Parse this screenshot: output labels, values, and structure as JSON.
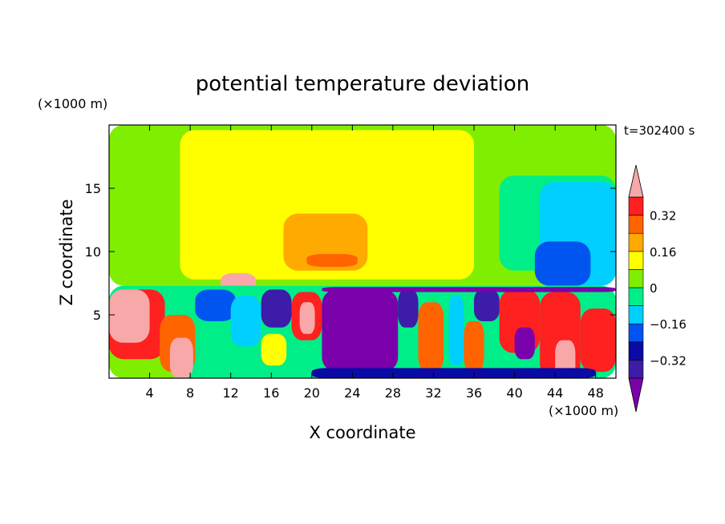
{
  "chart_data": {
    "type": "heatmap",
    "title": "potential temperature deviation",
    "xlabel": "X coordinate",
    "ylabel": "Z coordinate",
    "x_unit": "(×1000 m)",
    "y_unit": "(×1000 m)",
    "time_label": "t=302400 s",
    "xlim": [
      0,
      50
    ],
    "ylim": [
      0,
      20
    ],
    "x_ticks": [
      4,
      8,
      12,
      16,
      20,
      24,
      28,
      32,
      36,
      40,
      44,
      48
    ],
    "y_ticks": [
      5,
      10,
      15
    ],
    "colorbar": {
      "levels": [
        -0.48,
        -0.4,
        -0.32,
        -0.24,
        -0.16,
        -0.08,
        0,
        0.08,
        0.16,
        0.24,
        0.32,
        0.4
      ],
      "colors": [
        "#7a00aa",
        "#3c1ca8",
        "#0a0aa5",
        "#0055f0",
        "#00cfff",
        "#00ee88",
        "#80ee00",
        "#ffff00",
        "#ffaa00",
        "#ff6400",
        "#ff2020",
        "#f8a8a8"
      ],
      "tick_labels": [
        "0.32",
        "0.16",
        "0",
        "−0.16",
        "−0.32"
      ],
      "tick_values": [
        0.32,
        0.16,
        0,
        -0.16,
        -0.32
      ],
      "extend": "both"
    },
    "regions": [
      {
        "level": 6,
        "x": [
          0,
          50
        ],
        "z": [
          7.3,
          20
        ]
      },
      {
        "level": 7,
        "x": [
          7,
          36
        ],
        "z": [
          7.8,
          19.6
        ]
      },
      {
        "level": 5,
        "x": [
          38.5,
          50
        ],
        "z": [
          8.5,
          16
        ]
      },
      {
        "level": 4,
        "x": [
          42.5,
          50
        ],
        "z": [
          7.3,
          15.5
        ]
      },
      {
        "level": 3,
        "x": [
          42,
          47.5
        ],
        "z": [
          7.3,
          10.8
        ]
      },
      {
        "level": 8,
        "x": [
          17.2,
          25.5
        ],
        "z": [
          8.5,
          13
        ]
      },
      {
        "level": 9,
        "x": [
          19.5,
          24.5
        ],
        "z": [
          8.8,
          9.8
        ]
      },
      {
        "level": 11,
        "x": [
          11,
          14.5
        ],
        "z": [
          6.5,
          8.3
        ]
      },
      {
        "level": 5,
        "x": [
          0,
          50
        ],
        "z": [
          0,
          7.3
        ]
      },
      {
        "level": 6,
        "x": [
          0,
          8
        ],
        "z": [
          0,
          4
        ]
      },
      {
        "level": 10,
        "x": [
          0,
          5.5
        ],
        "z": [
          1.5,
          7
        ]
      },
      {
        "level": 11,
        "x": [
          0,
          4
        ],
        "z": [
          2.8,
          7
        ]
      },
      {
        "level": 9,
        "x": [
          5,
          8.5
        ],
        "z": [
          0.5,
          5
        ]
      },
      {
        "level": 11,
        "x": [
          6,
          8.3
        ],
        "z": [
          0,
          3.2
        ]
      },
      {
        "level": 3,
        "x": [
          8.5,
          12.5
        ],
        "z": [
          4.5,
          7
        ]
      },
      {
        "level": 4,
        "x": [
          12,
          15
        ],
        "z": [
          2.5,
          6.5
        ]
      },
      {
        "level": 7,
        "x": [
          15,
          17.5
        ],
        "z": [
          1,
          3.5
        ]
      },
      {
        "level": 1,
        "x": [
          15,
          18
        ],
        "z": [
          4,
          7
        ]
      },
      {
        "level": 10,
        "x": [
          18,
          21
        ],
        "z": [
          3,
          6.8
        ]
      },
      {
        "level": 11,
        "x": [
          18.8,
          20.3
        ],
        "z": [
          3.5,
          6
        ]
      },
      {
        "level": 0,
        "x": [
          21,
          28.5
        ],
        "z": [
          0.5,
          7
        ]
      },
      {
        "level": 1,
        "x": [
          28.5,
          30.5
        ],
        "z": [
          4,
          7
        ]
      },
      {
        "level": 9,
        "x": [
          30.5,
          33
        ],
        "z": [
          0.5,
          6
        ]
      },
      {
        "level": 4,
        "x": [
          33.5,
          35
        ],
        "z": [
          1,
          6.5
        ]
      },
      {
        "level": 9,
        "x": [
          35,
          37
        ],
        "z": [
          0.5,
          4.5
        ]
      },
      {
        "level": 1,
        "x": [
          36,
          38.5
        ],
        "z": [
          4.5,
          7
        ]
      },
      {
        "level": 10,
        "x": [
          38.5,
          42.5
        ],
        "z": [
          2,
          7
        ]
      },
      {
        "level": 0,
        "x": [
          40,
          42
        ],
        "z": [
          1.5,
          4
        ]
      },
      {
        "level": 10,
        "x": [
          42.5,
          46.5
        ],
        "z": [
          0,
          6.8
        ]
      },
      {
        "level": 11,
        "x": [
          44,
          46
        ],
        "z": [
          0,
          3
        ]
      },
      {
        "level": 10,
        "x": [
          46.5,
          50
        ],
        "z": [
          0.5,
          5.5
        ]
      },
      {
        "level": 2,
        "x": [
          20,
          48
        ],
        "z": [
          0,
          0.8
        ]
      },
      {
        "level": 0,
        "x": [
          21,
          50
        ],
        "z": [
          6.8,
          7.2
        ]
      }
    ]
  }
}
